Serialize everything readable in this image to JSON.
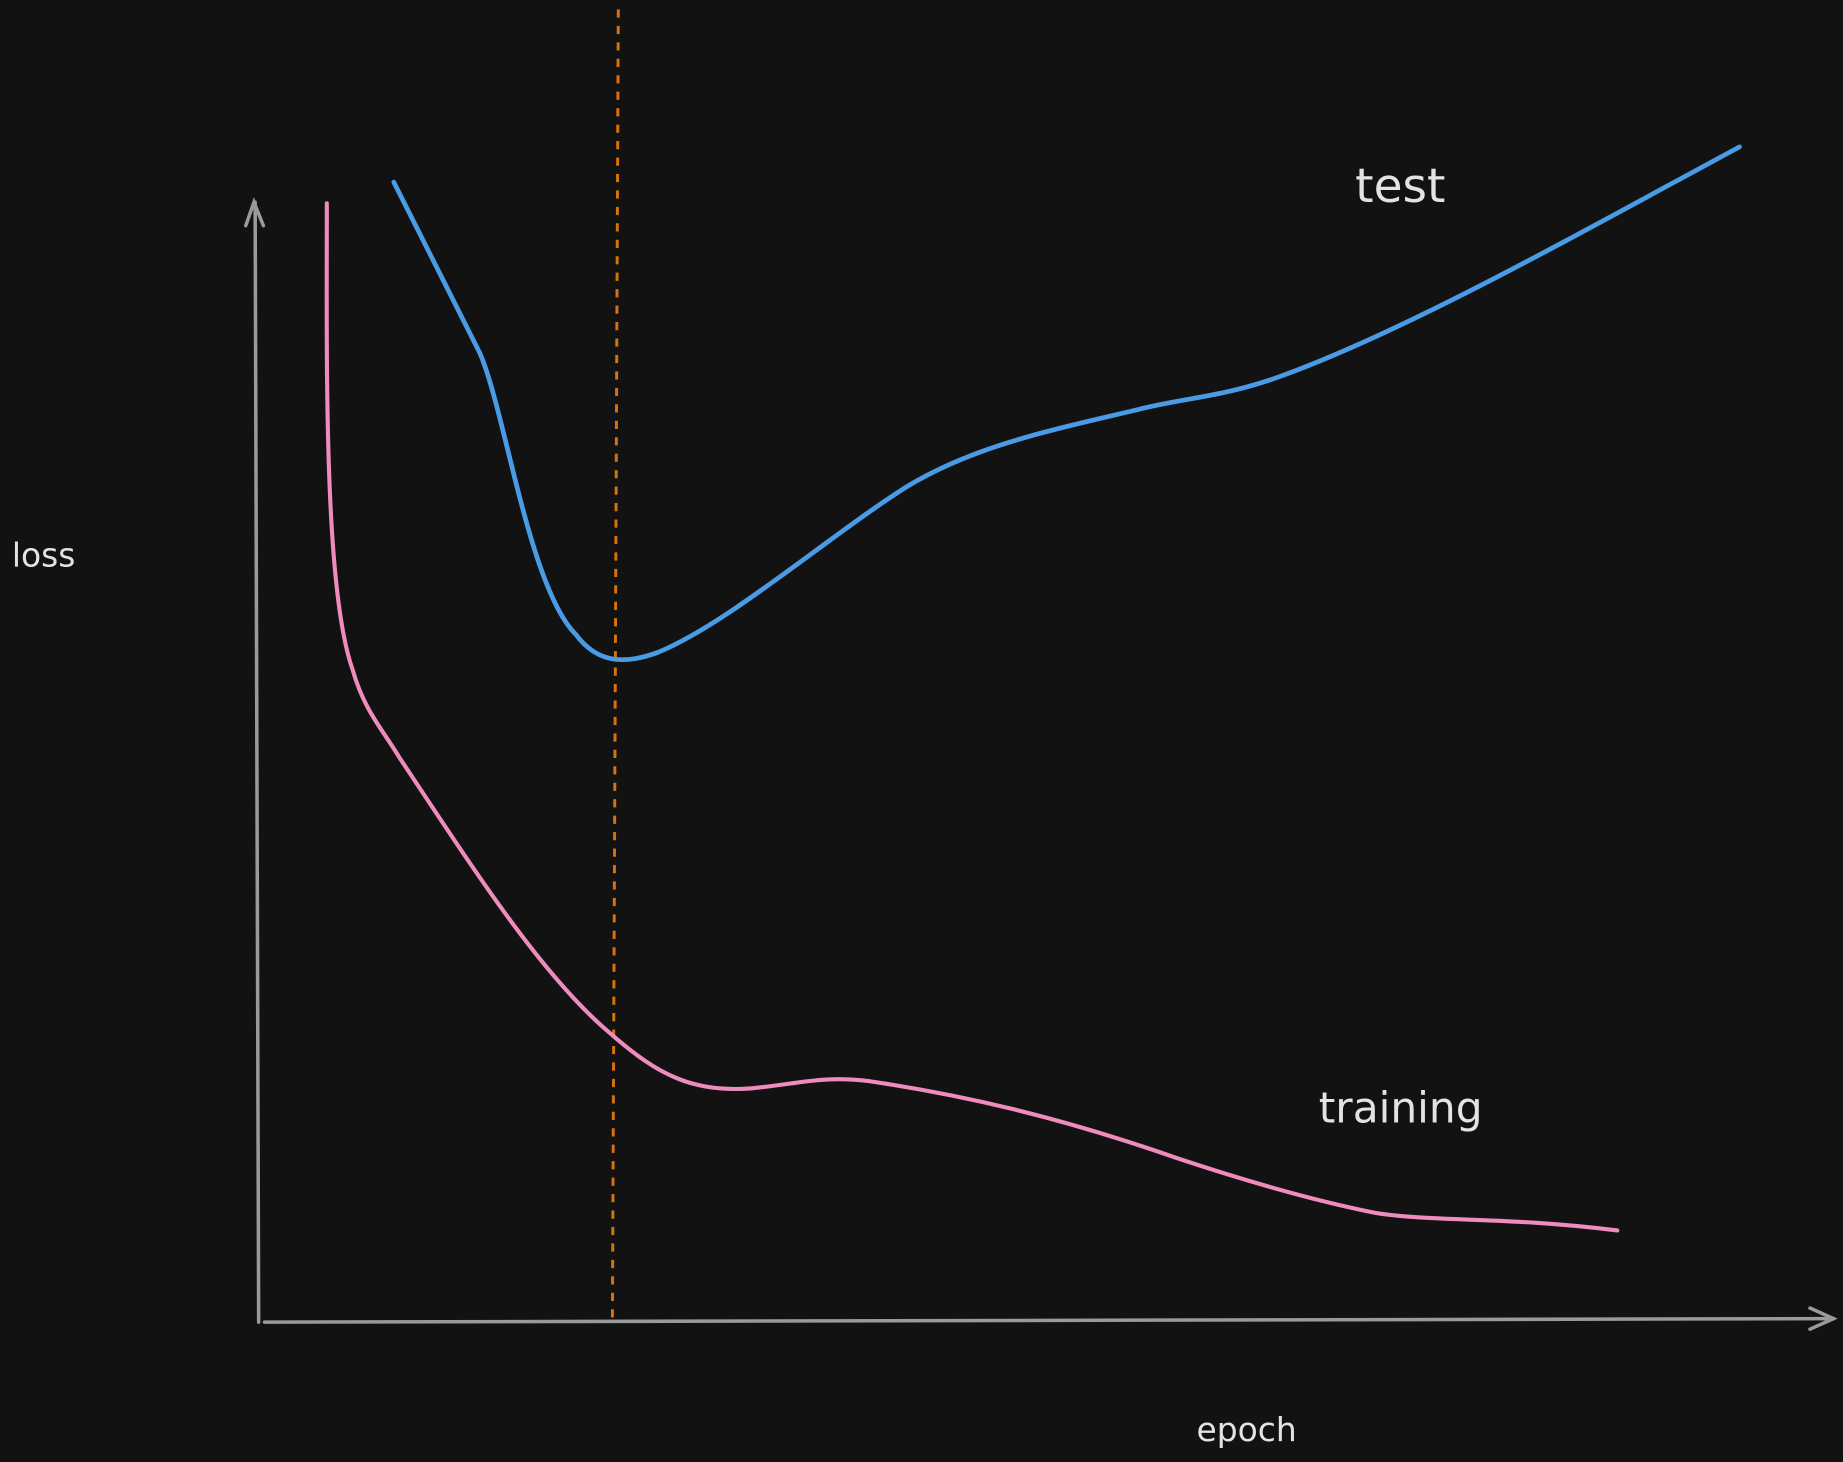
{
  "labels": {
    "y_axis": "loss",
    "x_axis": "epoch",
    "test": "test",
    "training": "training"
  }
}
